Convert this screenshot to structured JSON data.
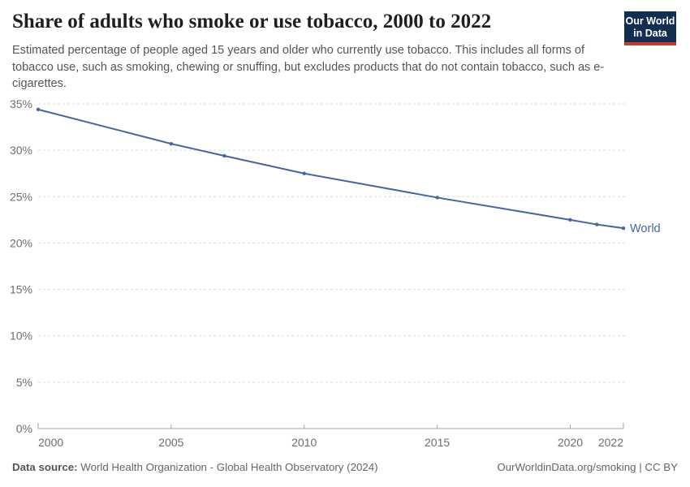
{
  "header": {
    "title": "Share of adults who smoke or use tobacco, 2000 to 2022",
    "subtitle": "Estimated percentage of people aged 15 years and older who currently use tobacco. This includes all forms of tobacco use, such as smoking, chewing or snuffing, but excludes products that do not contain tobacco, such as e-cigarettes.",
    "logo": {
      "line1": "Our World",
      "line2": "in Data",
      "bg_color": "#122e51",
      "stripe_color": "#c73a33"
    }
  },
  "chart_data": {
    "type": "line",
    "title": "Share of adults who smoke or use tobacco, 2000 to 2022",
    "xlabel": "",
    "ylabel": "",
    "xlim": [
      2000,
      2022
    ],
    "ylim": [
      0,
      35
    ],
    "x_ticks": [
      2000,
      2005,
      2010,
      2015,
      2020,
      2022
    ],
    "y_ticks": [
      0,
      5,
      10,
      15,
      20,
      25,
      30,
      35
    ],
    "y_tick_suffix": "%",
    "grid": "horizontal-dashed",
    "legend_position": "end-of-line-label",
    "series": [
      {
        "name": "World",
        "color": "#4266a8",
        "points": [
          {
            "x": 2000,
            "y": 34.4
          },
          {
            "x": 2005,
            "y": 30.7
          },
          {
            "x": 2007,
            "y": 29.4
          },
          {
            "x": 2010,
            "y": 27.5
          },
          {
            "x": 2015,
            "y": 24.9
          },
          {
            "x": 2020,
            "y": 22.5
          },
          {
            "x": 2021,
            "y": 22.0
          },
          {
            "x": 2022,
            "y": 21.6
          }
        ]
      }
    ]
  },
  "footer": {
    "datasource_label": "Data source:",
    "datasource_text": " World Health Organization - Global Health Observatory (2024)",
    "right_text": "OurWorldinData.org/smoking | CC BY"
  }
}
